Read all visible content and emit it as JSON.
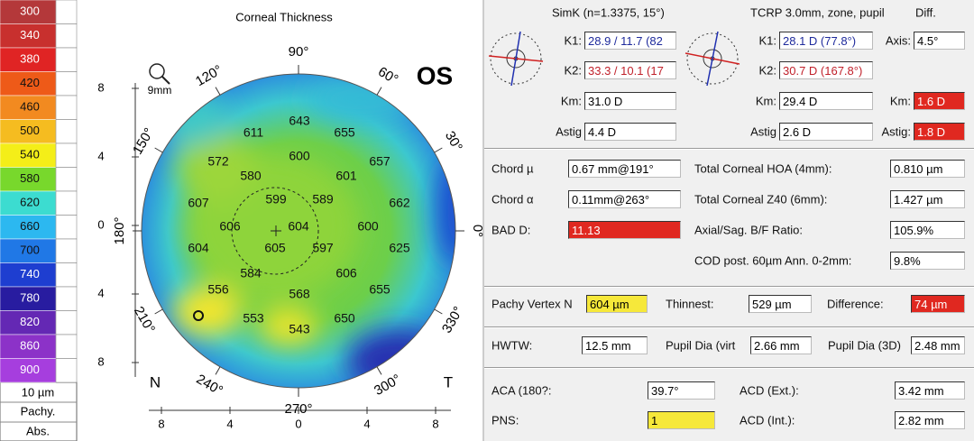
{
  "scale": {
    "values": [
      300,
      340,
      380,
      420,
      460,
      500,
      540,
      580,
      620,
      660,
      700,
      740,
      780,
      820,
      860,
      900
    ],
    "step": "10 µm",
    "mode": "Pachy.",
    "reference": "Abs."
  },
  "map": {
    "title": "Corneal Thickness",
    "eye": "OS",
    "zoom": "9mm",
    "angles": [
      "90°",
      "60°",
      "30°",
      "0°",
      "330°",
      "300°",
      "270°",
      "240°",
      "210°",
      "180°",
      "150°",
      "120°"
    ],
    "nasal": "N",
    "temporal": "T",
    "y_ticks": [
      "8",
      "4",
      "0",
      "4",
      "8"
    ],
    "x_ticks": [
      "8",
      "4",
      "0",
      "4",
      "8"
    ],
    "values": [
      643,
      611,
      655,
      600,
      572,
      580,
      601,
      657,
      607,
      599,
      589,
      662,
      606,
      604,
      600,
      604,
      605,
      597,
      625,
      584,
      606,
      556,
      568,
      655,
      553,
      543,
      650
    ]
  },
  "keratometry": {
    "simk_title": "SimK (n=1.3375, 15°)",
    "tcrp_title": "TCRP 3.0mm, zone, pupil",
    "diff_title": "Diff.",
    "simk": [
      {
        "label": "K1:",
        "value": "28.9 / 11.7 (82"
      },
      {
        "label": "K2:",
        "value": "33.3 / 10.1 (17"
      },
      {
        "label": "Km:",
        "value": "31.0 D"
      },
      {
        "label": "Astig",
        "value": "4.4 D"
      }
    ],
    "tcrp": [
      {
        "label": "K1:",
        "value": "28.1 D (77.8°)"
      },
      {
        "label": "K2:",
        "value": "30.7 D (167.8°)"
      },
      {
        "label": "Km:",
        "value": "29.4 D"
      },
      {
        "label": "Astig",
        "value": "2.6 D"
      }
    ],
    "diff": [
      {
        "label": "Axis:",
        "value": "4.5°"
      },
      {
        "label": "Km:",
        "value": "1.6 D"
      },
      {
        "label": "Astig:",
        "value": "1.8 D"
      }
    ]
  },
  "indices": [
    {
      "label": "Chord µ",
      "value": "0.67 mm@191°"
    },
    {
      "label": "Chord α",
      "value": "0.11mm@263°"
    },
    {
      "label": "BAD D:",
      "value": "11.13"
    },
    {
      "label": "Total Corneal HOA (4mm):",
      "value": "0.810 µm"
    },
    {
      "label": "Total Corneal Z40 (6mm):",
      "value": "1.427 µm"
    },
    {
      "label": "Axial/Sag. B/F Ratio:",
      "value": "105.9%"
    },
    {
      "label": "COD post. 60µm Ann. 0-2mm:",
      "value": "9.8%"
    }
  ],
  "pachy": [
    {
      "label": "Pachy Vertex N",
      "value": "604 µm"
    },
    {
      "label": "Thinnest:",
      "value": "529 µm"
    },
    {
      "label": "Difference:",
      "value": "74 µm"
    }
  ],
  "diameters": [
    {
      "label": "HWTW:",
      "value": "12.5 mm"
    },
    {
      "label": "Pupil Dia (virt",
      "value": "2.66 mm"
    },
    {
      "label": "Pupil Dia (3D)",
      "value": "2.48 mm"
    }
  ],
  "chamber": [
    {
      "label": "ACA (180?:",
      "value": "39.7°"
    },
    {
      "label": "PNS:",
      "value": "1"
    },
    {
      "label": "ACD (Ext.):",
      "value": "3.42 mm"
    },
    {
      "label": "ACD (Int.):",
      "value": "2.82 mm"
    }
  ]
}
